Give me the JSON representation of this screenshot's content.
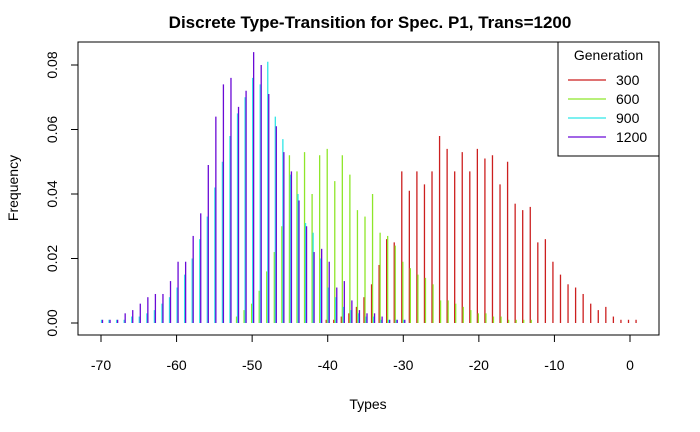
{
  "chart_data": {
    "type": "bar",
    "title": "Discrete Type-Transition for Spec. P1, Trans=1200",
    "xlabel": "Types",
    "ylabel": "Frequency",
    "xlim": [
      -72,
      2
    ],
    "ylim": [
      0,
      0.085
    ],
    "xticks": [
      -70,
      -60,
      -50,
      -40,
      -30,
      -20,
      -10,
      0
    ],
    "yticks": [
      0.0,
      0.02,
      0.04,
      0.06,
      0.08
    ],
    "ytick_labels": [
      "0.00",
      "0.02",
      "0.04",
      "0.06",
      "0.08"
    ],
    "grid": false,
    "legend": {
      "title": "Generation",
      "position": "top-right"
    },
    "series": [
      {
        "name": "300",
        "color": "#cc1f1f",
        "x": [
          -40,
          -39,
          -38,
          -37,
          -36,
          -35,
          -34,
          -33,
          -32,
          -31,
          -30,
          -29,
          -28,
          -27,
          -26,
          -25,
          -24,
          -23,
          -22,
          -21,
          -20,
          -19,
          -18,
          -17,
          -16,
          -15,
          -14,
          -13,
          -12,
          -11,
          -10,
          -9,
          -8,
          -7,
          -6,
          -5,
          -4,
          -3,
          -2,
          -1,
          0,
          1
        ],
        "values": [
          0.001,
          0.001,
          0.002,
          0.003,
          0.005,
          0.008,
          0.012,
          0.018,
          0.026,
          0.025,
          0.047,
          0.041,
          0.047,
          0.043,
          0.047,
          0.058,
          0.054,
          0.047,
          0.053,
          0.047,
          0.054,
          0.051,
          0.052,
          0.043,
          0.05,
          0.037,
          0.035,
          0.036,
          0.025,
          0.026,
          0.019,
          0.015,
          0.012,
          0.011,
          0.009,
          0.006,
          0.004,
          0.005,
          0.002,
          0.001,
          0.001,
          0.001
        ]
      },
      {
        "name": "600",
        "color": "#8ee62a",
        "x": [
          -52,
          -51,
          -50,
          -49,
          -48,
          -47,
          -46,
          -45,
          -44,
          -43,
          -42,
          -41,
          -40,
          -39,
          -38,
          -37,
          -36,
          -35,
          -34,
          -33,
          -32,
          -31,
          -30,
          -29,
          -28,
          -27,
          -26,
          -25,
          -24,
          -23,
          -22,
          -21,
          -20,
          -19,
          -18,
          -17,
          -16,
          -15,
          -14,
          -13
        ],
        "values": [
          0.002,
          0.004,
          0.006,
          0.01,
          0.016,
          0.022,
          0.03,
          0.052,
          0.047,
          0.053,
          0.04,
          0.052,
          0.054,
          0.044,
          0.052,
          0.046,
          0.035,
          0.033,
          0.04,
          0.028,
          0.027,
          0.024,
          0.019,
          0.017,
          0.015,
          0.014,
          0.012,
          0.007,
          0.007,
          0.006,
          0.005,
          0.004,
          0.003,
          0.003,
          0.002,
          0.002,
          0.001,
          0.001,
          0.001,
          0.001
        ]
      },
      {
        "name": "900",
        "color": "#2ee6e6",
        "x": [
          -70,
          -69,
          -68,
          -67,
          -66,
          -65,
          -64,
          -63,
          -62,
          -61,
          -60,
          -59,
          -58,
          -57,
          -56,
          -55,
          -54,
          -53,
          -52,
          -51,
          -50,
          -49,
          -48,
          -47,
          -46,
          -45,
          -44,
          -43,
          -42,
          -41,
          -40,
          -39,
          -38,
          -37,
          -36,
          -35,
          -34,
          -33,
          -32,
          -31,
          -30
        ],
        "values": [
          0.001,
          0.001,
          0.001,
          0.001,
          0.002,
          0.002,
          0.003,
          0.004,
          0.006,
          0.008,
          0.011,
          0.015,
          0.02,
          0.026,
          0.033,
          0.042,
          0.05,
          0.058,
          0.065,
          0.07,
          0.076,
          0.074,
          0.081,
          0.064,
          0.057,
          0.046,
          0.04,
          0.031,
          0.028,
          0.02,
          0.011,
          0.008,
          0.005,
          0.004,
          0.003,
          0.002,
          0.002,
          0.001,
          0.001,
          0.001,
          0.001
        ]
      },
      {
        "name": "1200",
        "color": "#6a0ad6",
        "x": [
          -70,
          -69,
          -68,
          -67,
          -66,
          -65,
          -64,
          -63,
          -62,
          -61,
          -60,
          -59,
          -58,
          -57,
          -56,
          -55,
          -54,
          -53,
          -52,
          -51,
          -50,
          -49,
          -48,
          -47,
          -46,
          -45,
          -44,
          -43,
          -42,
          -41,
          -40,
          -39,
          -38,
          -37,
          -36,
          -35,
          -34,
          -33,
          -32,
          -31,
          -30
        ],
        "values": [
          0.001,
          0.001,
          0.001,
          0.003,
          0.004,
          0.006,
          0.008,
          0.009,
          0.009,
          0.013,
          0.019,
          0.019,
          0.027,
          0.034,
          0.049,
          0.064,
          0.074,
          0.076,
          0.067,
          0.072,
          0.084,
          0.08,
          0.071,
          0.061,
          0.053,
          0.047,
          0.038,
          0.03,
          0.022,
          0.023,
          0.019,
          0.011,
          0.013,
          0.007,
          0.004,
          0.003,
          0.003,
          0.002,
          0.001,
          0.001,
          0.001
        ]
      }
    ]
  }
}
